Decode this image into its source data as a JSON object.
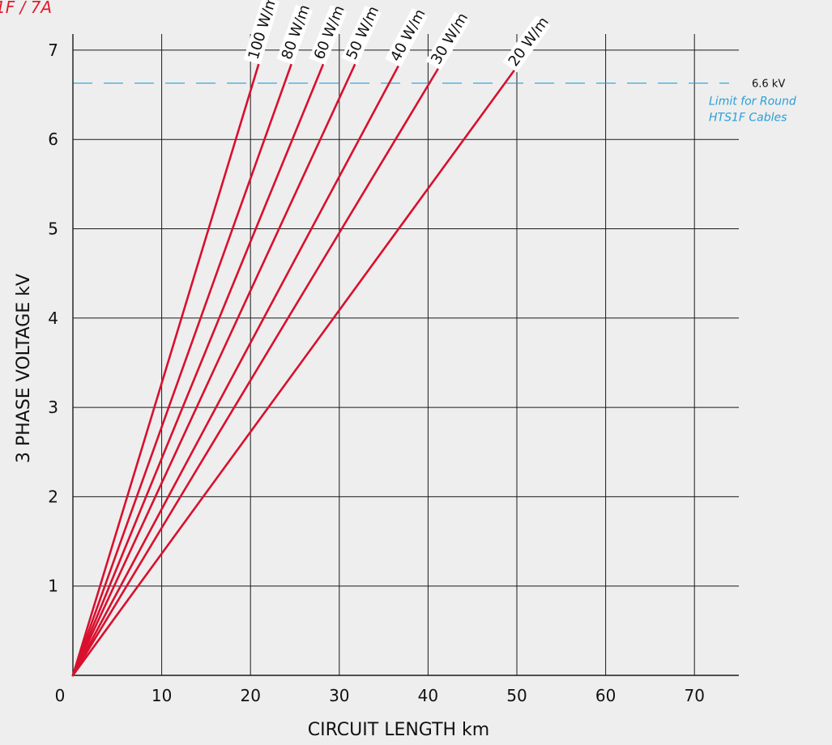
{
  "chart_data": {
    "type": "line",
    "title": "1F / 7A",
    "xlabel": "CIRCUIT LENGTH km",
    "ylabel": "3 PHASE VOLTAGE kV",
    "xlim": [
      0,
      75
    ],
    "ylim": [
      0,
      7.1
    ],
    "x_ticks": [
      {
        "value": 10,
        "label": "10"
      },
      {
        "value": 20,
        "label": "20"
      },
      {
        "value": 30,
        "label": "30"
      },
      {
        "value": 40,
        "label": "40"
      },
      {
        "value": 50,
        "label": "50"
      },
      {
        "value": 60,
        "label": "60"
      },
      {
        "value": 70,
        "label": "70"
      }
    ],
    "y_ticks": [
      {
        "value": 1,
        "label": "1"
      },
      {
        "value": 2,
        "label": "2"
      },
      {
        "value": 3,
        "label": "3"
      },
      {
        "value": 4,
        "label": "4"
      },
      {
        "value": 5,
        "label": "5"
      },
      {
        "value": 6,
        "label": "6"
      },
      {
        "value": 7,
        "label": "7"
      }
    ],
    "origin_label": "0",
    "grid": true,
    "line_color": "#d8102e",
    "series": [
      {
        "name": "100 W/m",
        "x": [
          0,
          21.0
        ],
        "y": [
          0,
          6.87
        ]
      },
      {
        "name": "80 W/m",
        "x": [
          0,
          24.7
        ],
        "y": [
          0,
          6.87
        ]
      },
      {
        "name": "60 W/m",
        "x": [
          0,
          28.3
        ],
        "y": [
          0,
          6.87
        ]
      },
      {
        "name": "50 W/m",
        "x": [
          0,
          31.9
        ],
        "y": [
          0,
          6.87
        ]
      },
      {
        "name": "40 W/m",
        "x": [
          0,
          36.8
        ],
        "y": [
          0,
          6.85
        ]
      },
      {
        "name": "30 W/m",
        "x": [
          0,
          41.3
        ],
        "y": [
          0,
          6.82
        ]
      },
      {
        "name": "20 W/m",
        "x": [
          0,
          49.9
        ],
        "y": [
          0,
          6.8
        ]
      }
    ],
    "reference_line": {
      "y": 6.63,
      "value_label": "6.6 kV",
      "description_lines": [
        "Limit for Round",
        "HTS1F Cables"
      ],
      "color": "#2a9fd6"
    }
  }
}
